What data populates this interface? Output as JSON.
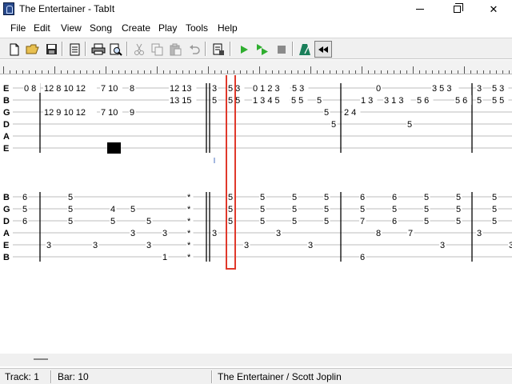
{
  "window": {
    "title": "The Entertainer - TabIt",
    "minimize_icon": "minimize-icon",
    "maximize_icon": "restore-icon",
    "close_glyph": "✕"
  },
  "menu": {
    "items": [
      "File",
      "Edit",
      "View",
      "Song",
      "Create",
      "Play",
      "Tools",
      "Help"
    ]
  },
  "toolbar": {
    "buttons": [
      "new-document-icon",
      "open-folder-icon",
      "save-icon",
      "document-properties-icon",
      "print-icon",
      "print-preview-icon",
      "cut-icon",
      "copy-icon",
      "paste-icon",
      "undo-icon",
      "song-properties-icon",
      "play-icon",
      "play-from-cursor-icon",
      "stop-icon",
      "metronome-icon",
      "rewind-icon"
    ]
  },
  "tab": {
    "system1": {
      "strings": [
        "E",
        "B",
        "G",
        "D",
        "A",
        "E"
      ],
      "notes": [
        {
          "s": 0,
          "t": "0 8"
        },
        {
          "s": 0,
          "t": "12 8 10 12"
        },
        {
          "s": 0,
          "t": "7 10"
        },
        {
          "s": 0,
          "t": "8"
        },
        {
          "s": 0,
          "t": "12 13"
        },
        {
          "s": 0,
          "t": "3"
        },
        {
          "s": 0,
          "t": "5 3"
        },
        {
          "s": 0,
          "t": "0 1 2 3"
        },
        {
          "s": 0,
          "t": "5 3"
        },
        {
          "s": 0,
          "t": "0"
        },
        {
          "s": 0,
          "t": "3 5 3"
        },
        {
          "s": 0,
          "t": "3"
        },
        {
          "s": 0,
          "t": "5 3"
        },
        {
          "s": 1,
          "t": "13 15"
        },
        {
          "s": 1,
          "t": "5"
        },
        {
          "s": 1,
          "t": "5 5"
        },
        {
          "s": 1,
          "t": "1 3 4 5"
        },
        {
          "s": 1,
          "t": "5 5"
        },
        {
          "s": 1,
          "t": "5"
        },
        {
          "s": 1,
          "t": "1 3"
        },
        {
          "s": 1,
          "t": "3 1 3"
        },
        {
          "s": 1,
          "t": "5 6"
        },
        {
          "s": 1,
          "t": "5 6"
        },
        {
          "s": 1,
          "t": "5"
        },
        {
          "s": 1,
          "t": "5 5"
        },
        {
          "s": 2,
          "t": "12 9 10 12"
        },
        {
          "s": 2,
          "t": "7 10"
        },
        {
          "s": 2,
          "t": "9"
        },
        {
          "s": 2,
          "t": "5"
        },
        {
          "s": 2,
          "t": "2 4"
        },
        {
          "s": 3,
          "t": "5"
        },
        {
          "s": 3,
          "t": "5"
        }
      ]
    },
    "system2": {
      "strings": [
        "B",
        "G",
        "D",
        "A",
        "E",
        "B"
      ],
      "notes": [
        {
          "s": 0,
          "t": "6"
        },
        {
          "s": 0,
          "t": "5"
        },
        {
          "s": 0,
          "t": "*"
        },
        {
          "s": 0,
          "t": "5"
        },
        {
          "s": 0,
          "t": "5"
        },
        {
          "s": 0,
          "t": "5"
        },
        {
          "s": 0,
          "t": "5"
        },
        {
          "s": 0,
          "t": "6"
        },
        {
          "s": 0,
          "t": "6"
        },
        {
          "s": 0,
          "t": "5"
        },
        {
          "s": 0,
          "t": "5"
        },
        {
          "s": 0,
          "t": "5"
        },
        {
          "s": 1,
          "t": "5"
        },
        {
          "s": 1,
          "t": "5"
        },
        {
          "s": 1,
          "t": "4"
        },
        {
          "s": 1,
          "t": "5"
        },
        {
          "s": 1,
          "t": "*"
        },
        {
          "s": 1,
          "t": "5"
        },
        {
          "s": 1,
          "t": "5"
        },
        {
          "s": 1,
          "t": "5"
        },
        {
          "s": 1,
          "t": "5"
        },
        {
          "s": 1,
          "t": "5"
        },
        {
          "s": 1,
          "t": "5"
        },
        {
          "s": 1,
          "t": "5"
        },
        {
          "s": 1,
          "t": "5"
        },
        {
          "s": 1,
          "t": "5"
        },
        {
          "s": 2,
          "t": "6"
        },
        {
          "s": 2,
          "t": "5"
        },
        {
          "s": 2,
          "t": "5"
        },
        {
          "s": 2,
          "t": "5"
        },
        {
          "s": 2,
          "t": "*"
        },
        {
          "s": 2,
          "t": "5"
        },
        {
          "s": 2,
          "t": "5"
        },
        {
          "s": 2,
          "t": "5"
        },
        {
          "s": 2,
          "t": "5"
        },
        {
          "s": 2,
          "t": "7"
        },
        {
          "s": 2,
          "t": "6"
        },
        {
          "s": 2,
          "t": "5"
        },
        {
          "s": 2,
          "t": "5"
        },
        {
          "s": 2,
          "t": "5"
        },
        {
          "s": 3,
          "t": "3"
        },
        {
          "s": 3,
          "t": "3"
        },
        {
          "s": 3,
          "t": "*"
        },
        {
          "s": 3,
          "t": "3"
        },
        {
          "s": 3,
          "t": "3"
        },
        {
          "s": 3,
          "t": "8"
        },
        {
          "s": 3,
          "t": "7"
        },
        {
          "s": 3,
          "t": "3"
        },
        {
          "s": 4,
          "t": "3"
        },
        {
          "s": 4,
          "t": "3"
        },
        {
          "s": 4,
          "t": "3"
        },
        {
          "s": 4,
          "t": "*"
        },
        {
          "s": 4,
          "t": "3"
        },
        {
          "s": 4,
          "t": "3"
        },
        {
          "s": 4,
          "t": "3"
        },
        {
          "s": 4,
          "t": "3"
        },
        {
          "s": 5,
          "t": "1"
        },
        {
          "s": 5,
          "t": "*"
        },
        {
          "s": 5,
          "t": "6"
        }
      ]
    }
  },
  "status": {
    "track": "Track: 1",
    "bar": "Bar: 10",
    "song": "The Entertainer / Scott Joplin"
  },
  "colors": {
    "cursor": "#e0392b",
    "play": "#2fae2f",
    "metronome": "#1a7f5a",
    "toolbar_bg": "#f0f0f0"
  }
}
